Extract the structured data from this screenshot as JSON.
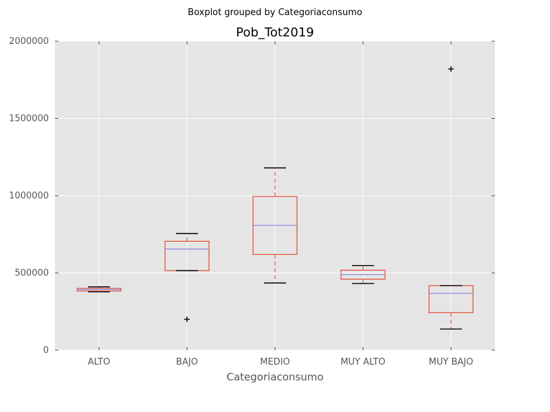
{
  "colors": {
    "background": "#ffffff",
    "plot_area": "#e5e5e5",
    "grid": "#ffffff",
    "box": "#e24a33",
    "median": "#8888dd",
    "whisker_cap": "#000000",
    "flier": "#000000",
    "tick": "#555555"
  },
  "chart_data": {
    "type": "boxplot",
    "suptitle": "Boxplot grouped by Categoriaconsumo",
    "title": "Pob_Tot2019",
    "xlabel": "Categoriaconsumo",
    "ylabel": "",
    "ylim": [
      0,
      2000000
    ],
    "yticks": [
      0,
      500000,
      1000000,
      1500000,
      2000000
    ],
    "ytick_labels": [
      "0",
      "500000",
      "1000000",
      "1500000",
      "2000000"
    ],
    "grid": true,
    "categories": [
      "ALTO",
      "BAJO",
      "MEDIO",
      "MUY ALTO",
      "MUY BAJO"
    ],
    "boxes": [
      {
        "category": "ALTO",
        "whisker_low": 378000,
        "q1": 383000,
        "median": 393000,
        "q3": 400000,
        "whisker_high": 410000,
        "fliers": []
      },
      {
        "category": "BAJO",
        "whisker_low": 515000,
        "q1": 515000,
        "median": 655000,
        "q3": 705000,
        "whisker_high": 755000,
        "fliers": [
          200000
        ]
      },
      {
        "category": "MEDIO",
        "whisker_low": 435000,
        "q1": 620000,
        "median": 808000,
        "q3": 995000,
        "whisker_high": 1180000,
        "fliers": []
      },
      {
        "category": "MUY ALTO",
        "whisker_low": 432000,
        "q1": 460000,
        "median": 490000,
        "q3": 518000,
        "whisker_high": 548000,
        "fliers": []
      },
      {
        "category": "MUY BAJO",
        "whisker_low": 137000,
        "q1": 243000,
        "median": 368000,
        "q3": 418000,
        "whisker_high": 418000,
        "fliers": [
          1820000
        ]
      }
    ]
  }
}
